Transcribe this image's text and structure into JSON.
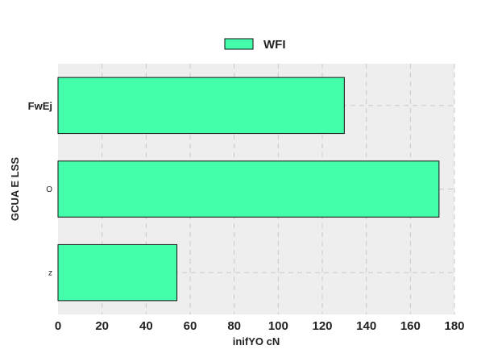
{
  "colors": {
    "bar_fill": "#44ffaa",
    "bar_stroke": "#111111",
    "plot_bg": "#eeeeee",
    "grid": "#c8c8c8"
  },
  "chart_data": {
    "type": "bar",
    "orientation": "horizontal",
    "title": "",
    "xlabel": "inifYO cN",
    "ylabel": "GCUA E LSS",
    "xlim": [
      0,
      180
    ],
    "x_ticks": [
      0,
      20,
      40,
      60,
      80,
      100,
      120,
      140,
      160,
      180
    ],
    "grid": true,
    "legend_position": "top-center",
    "categories": [
      "FwEj",
      "O",
      "z"
    ],
    "series": [
      {
        "name": "WFI",
        "values": [
          130,
          173,
          54
        ]
      }
    ]
  }
}
